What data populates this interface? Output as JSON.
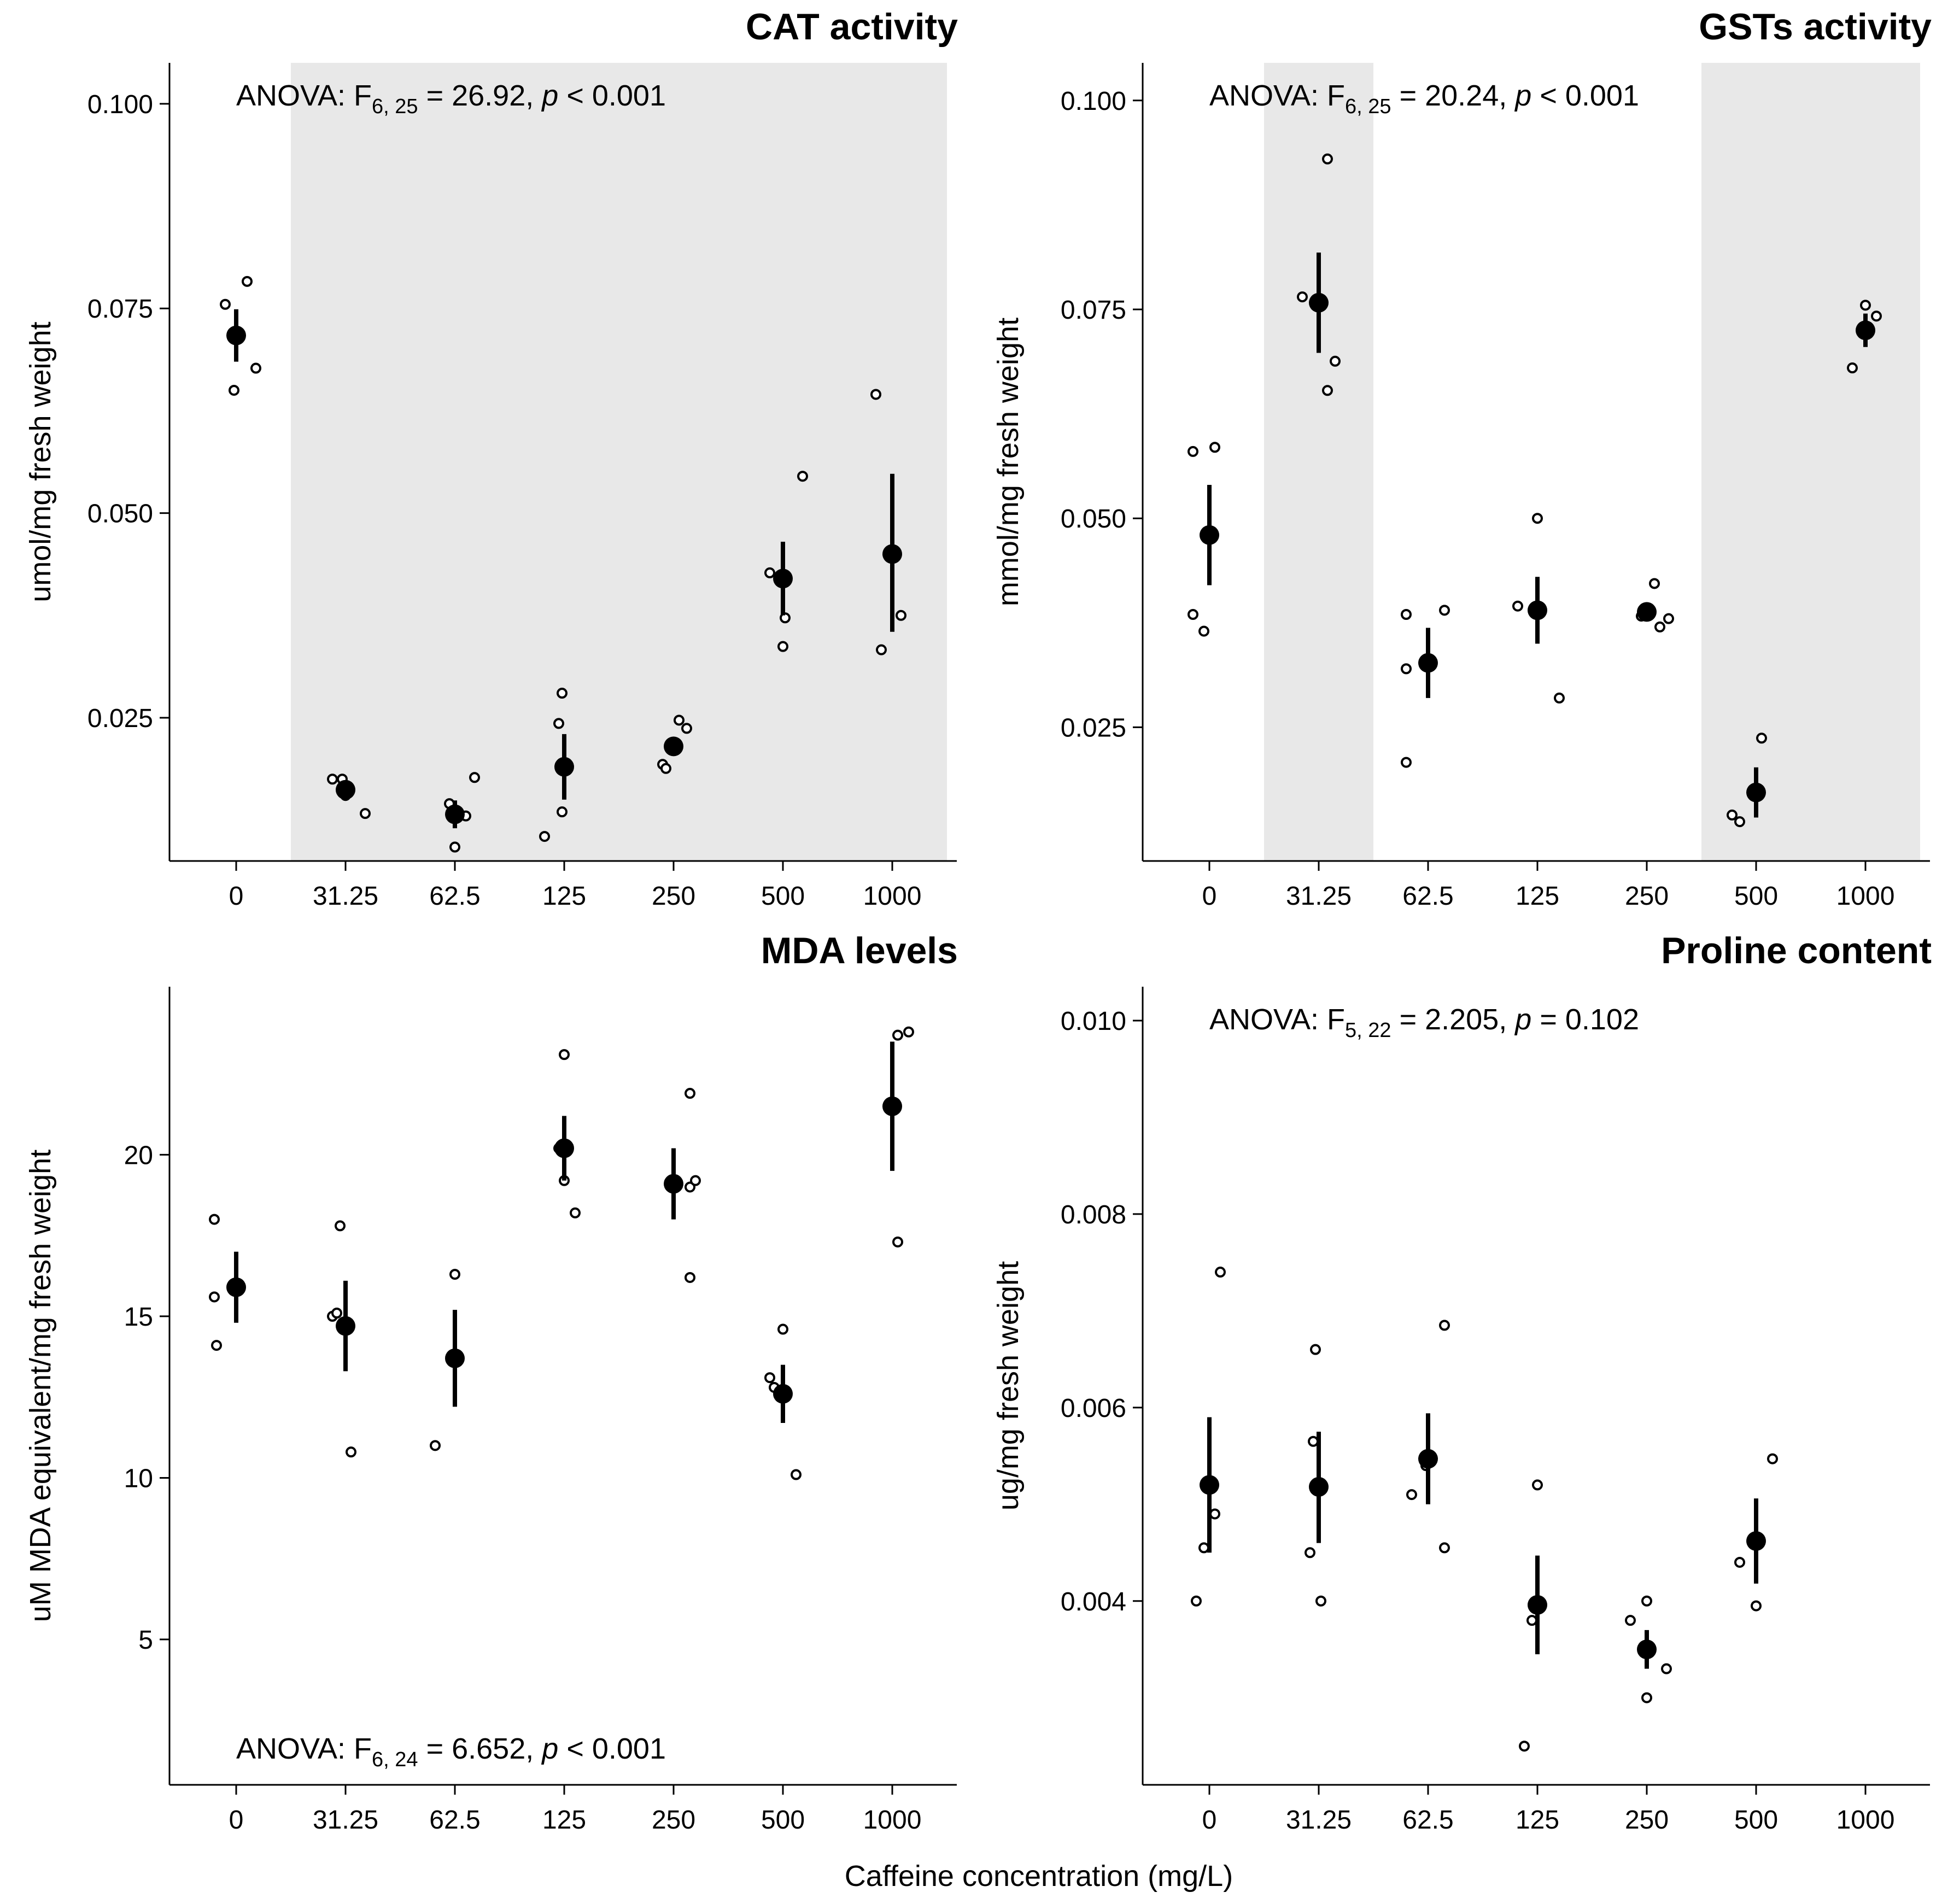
{
  "figure": {
    "x_title": "Caffeine concentration (mg/L)"
  },
  "chart_data": [
    {
      "type": "scatter",
      "title": "CAT activity",
      "ylabel": "umol/mg fresh weight",
      "xlabel": "Caffeine concentration (mg/L)",
      "categories": [
        "0",
        "31.25",
        "62.5",
        "125",
        "250",
        "500",
        "1000"
      ],
      "ylim": [
        0.0075,
        0.105
      ],
      "yticks": [
        0.025,
        0.05,
        0.075,
        0.1
      ],
      "ytick_labels": [
        "0.025",
        "0.050",
        "0.075",
        "0.100"
      ],
      "shaded_categories": [
        "31.25",
        "62.5",
        "125",
        "250",
        "500",
        "1000"
      ],
      "anova": {
        "prefix": "ANOVA: F",
        "sub": "6, 25",
        "stat": " = 26.92, ",
        "p": "p",
        "tail": " < 0.001",
        "placement": "top"
      },
      "series": [
        {
          "name": "mean",
          "values": [
            0.0717,
            0.0162,
            0.0132,
            0.019,
            0.0215,
            0.042,
            0.045
          ]
        },
        {
          "name": "error_low",
          "values": [
            0.0685,
            0.0152,
            0.0115,
            0.015,
            0.0205,
            0.0375,
            0.0355
          ]
        },
        {
          "name": "error_high",
          "values": [
            0.0749,
            0.0172,
            0.0149,
            0.023,
            0.0225,
            0.0465,
            0.0548
          ]
        }
      ],
      "replicates": [
        [
          [
            -0.1,
            0.0755
          ],
          [
            -0.02,
            0.065
          ],
          [
            0.1,
            0.0783
          ],
          [
            0.18,
            0.0677
          ]
        ],
        [
          [
            -0.12,
            0.0175
          ],
          [
            -0.03,
            0.0175
          ],
          [
            0.0,
            0.0155
          ],
          [
            0.18,
            0.0133
          ]
        ],
        [
          [
            -0.05,
            0.0145
          ],
          [
            0.0,
            0.0092
          ],
          [
            0.1,
            0.013
          ],
          [
            0.18,
            0.0177
          ]
        ],
        [
          [
            -0.18,
            0.0105
          ],
          [
            -0.05,
            0.0243
          ],
          [
            -0.02,
            0.028
          ],
          [
            -0.02,
            0.0135
          ]
        ],
        [
          [
            -0.1,
            0.0193
          ],
          [
            -0.07,
            0.0188
          ],
          [
            0.05,
            0.0247
          ],
          [
            0.12,
            0.0237
          ]
        ],
        [
          [
            -0.12,
            0.0427
          ],
          [
            0.0,
            0.0337
          ],
          [
            0.02,
            0.0372
          ],
          [
            0.18,
            0.0545
          ]
        ],
        [
          [
            -0.15,
            0.0645
          ],
          [
            -0.1,
            0.0333
          ],
          [
            0.08,
            0.0375
          ]
        ]
      ]
    },
    {
      "type": "scatter",
      "title": "GSTs activity",
      "ylabel": "mmol/mg fresh weight",
      "xlabel": "Caffeine concentration (mg/L)",
      "categories": [
        "0",
        "31.25",
        "62.5",
        "125",
        "250",
        "500",
        "1000"
      ],
      "ylim": [
        0.009,
        0.1045
      ],
      "yticks": [
        0.025,
        0.05,
        0.075,
        0.1
      ],
      "ytick_labels": [
        "0.025",
        "0.050",
        "0.075",
        "0.100"
      ],
      "shaded_categories": [
        "31.25",
        "500",
        "1000"
      ],
      "anova": {
        "prefix": "ANOVA: F",
        "sub": "6, 25",
        "stat": " = 20.24, ",
        "p": "p",
        "tail": " < 0.001",
        "placement": "top"
      },
      "series": [
        {
          "name": "mean",
          "values": [
            0.048,
            0.0758,
            0.0327,
            0.039,
            0.0388,
            0.0172,
            0.0725
          ]
        },
        {
          "name": "error_low",
          "values": [
            0.042,
            0.0698,
            0.0285,
            0.035,
            0.0383,
            0.0142,
            0.0705
          ]
        },
        {
          "name": "error_high",
          "values": [
            0.054,
            0.0818,
            0.0369,
            0.043,
            0.0393,
            0.0202,
            0.0745
          ]
        }
      ],
      "replicates": [
        [
          [
            -0.15,
            0.058
          ],
          [
            -0.15,
            0.0385
          ],
          [
            -0.05,
            0.0365
          ],
          [
            0.05,
            0.0585
          ]
        ],
        [
          [
            -0.15,
            0.0765
          ],
          [
            0.08,
            0.093
          ],
          [
            0.08,
            0.0653
          ],
          [
            0.15,
            0.0688
          ]
        ],
        [
          [
            -0.2,
            0.0385
          ],
          [
            -0.2,
            0.032
          ],
          [
            -0.2,
            0.0208
          ],
          [
            0.15,
            0.039
          ]
        ],
        [
          [
            -0.18,
            0.0395
          ],
          [
            0.0,
            0.05
          ],
          [
            0.2,
            0.0285
          ]
        ],
        [
          [
            -0.05,
            0.0383
          ],
          [
            0.07,
            0.0422
          ],
          [
            0.12,
            0.037
          ],
          [
            0.2,
            0.038
          ]
        ],
        [
          [
            -0.22,
            0.0145
          ],
          [
            -0.15,
            0.0137
          ],
          [
            0.05,
            0.0237
          ]
        ],
        [
          [
            -0.12,
            0.068
          ],
          [
            0.0,
            0.0755
          ],
          [
            0.1,
            0.0742
          ]
        ]
      ]
    },
    {
      "type": "scatter",
      "title": "MDA levels",
      "ylabel": "uM MDA equivalent/mg fresh weight",
      "xlabel": "Caffeine concentration (mg/L)",
      "categories": [
        "0",
        "31.25",
        "62.5",
        "125",
        "250",
        "500",
        "1000"
      ],
      "ylim": [
        0.5,
        25.2
      ],
      "yticks": [
        5,
        10,
        15,
        20
      ],
      "ytick_labels": [
        "5",
        "10",
        "15",
        "20"
      ],
      "shaded_categories": [],
      "anova": {
        "prefix": "ANOVA: F",
        "sub": "6, 24",
        "stat": " = 6.652, ",
        "p": "p",
        "tail": " < 0.001",
        "placement": "bottom"
      },
      "series": [
        {
          "name": "mean",
          "values": [
            15.9,
            14.7,
            13.7,
            20.2,
            19.1,
            12.6,
            21.5
          ]
        },
        {
          "name": "error_low",
          "values": [
            14.8,
            13.3,
            12.2,
            19.2,
            18.0,
            11.7,
            19.5
          ]
        },
        {
          "name": "error_high",
          "values": [
            17.0,
            16.1,
            15.2,
            21.2,
            20.2,
            13.5,
            23.5
          ]
        }
      ],
      "replicates": [
        [
          [
            -0.2,
            18.0
          ],
          [
            -0.2,
            15.6
          ],
          [
            -0.18,
            14.1
          ]
        ],
        [
          [
            -0.12,
            15.0
          ],
          [
            -0.08,
            15.1
          ],
          [
            -0.05,
            17.8
          ],
          [
            0.05,
            10.8
          ]
        ],
        [
          [
            -0.18,
            11.0
          ],
          [
            0.0,
            16.3
          ]
        ],
        [
          [
            -0.05,
            20.2
          ],
          [
            0.0,
            23.1
          ],
          [
            0.0,
            19.2
          ],
          [
            0.1,
            18.2
          ]
        ],
        [
          [
            0.15,
            21.9
          ],
          [
            0.15,
            19.0
          ],
          [
            0.2,
            19.2
          ],
          [
            0.15,
            16.2
          ]
        ],
        [
          [
            -0.12,
            13.1
          ],
          [
            -0.08,
            12.8
          ],
          [
            0.0,
            14.6
          ],
          [
            0.12,
            10.1
          ]
        ],
        [
          [
            0.05,
            23.7
          ],
          [
            0.15,
            23.8
          ],
          [
            0.05,
            17.3
          ]
        ]
      ]
    },
    {
      "type": "scatter",
      "title": "Proline content",
      "ylabel": "ug/mg fresh weight",
      "xlabel": "Caffeine concentration (mg/L)",
      "categories": [
        "0",
        "31.25",
        "62.5",
        "125",
        "250",
        "500",
        "1000"
      ],
      "ylim": [
        0.0021,
        0.01035
      ],
      "yticks": [
        0.004,
        0.006,
        0.008,
        0.01
      ],
      "ytick_labels": [
        "0.004",
        "0.006",
        "0.008",
        "0.010"
      ],
      "shaded_categories": [],
      "anova": {
        "prefix": "ANOVA: F",
        "sub": "5, 22",
        "stat": " = 2.205, ",
        "p": "p",
        "tail": " = 0.102",
        "placement": "top"
      },
      "series": [
        {
          "name": "mean",
          "values": [
            0.0052,
            0.00518,
            0.00547,
            0.00396,
            0.0035,
            0.00462,
            null
          ]
        },
        {
          "name": "error_low",
          "values": [
            0.0045,
            0.0046,
            0.005,
            0.00345,
            0.0033,
            0.00418,
            null
          ]
        },
        {
          "name": "error_high",
          "values": [
            0.0059,
            0.00575,
            0.00594,
            0.00447,
            0.0037,
            0.00506,
            null
          ]
        }
      ],
      "replicates": [
        [
          [
            -0.12,
            0.004
          ],
          [
            -0.05,
            0.00455
          ],
          [
            0.05,
            0.0049
          ],
          [
            0.1,
            0.0074
          ]
        ],
        [
          [
            -0.08,
            0.0045
          ],
          [
            -0.05,
            0.00565
          ],
          [
            -0.03,
            0.0066
          ],
          [
            0.02,
            0.004
          ]
        ],
        [
          [
            -0.15,
            0.0051
          ],
          [
            -0.02,
            0.0054
          ],
          [
            0.15,
            0.00455
          ],
          [
            0.15,
            0.00685
          ]
        ],
        [
          [
            -0.12,
            0.0025
          ],
          [
            -0.05,
            0.0038
          ],
          [
            0.0,
            0.0052
          ]
        ],
        [
          [
            -0.15,
            0.0038
          ],
          [
            0.0,
            0.004
          ],
          [
            0.0,
            0.003
          ],
          [
            0.18,
            0.0033
          ]
        ],
        [
          [
            -0.15,
            0.0044
          ],
          [
            0.0,
            0.00395
          ],
          [
            0.15,
            0.00547
          ]
        ]
      ]
    }
  ]
}
